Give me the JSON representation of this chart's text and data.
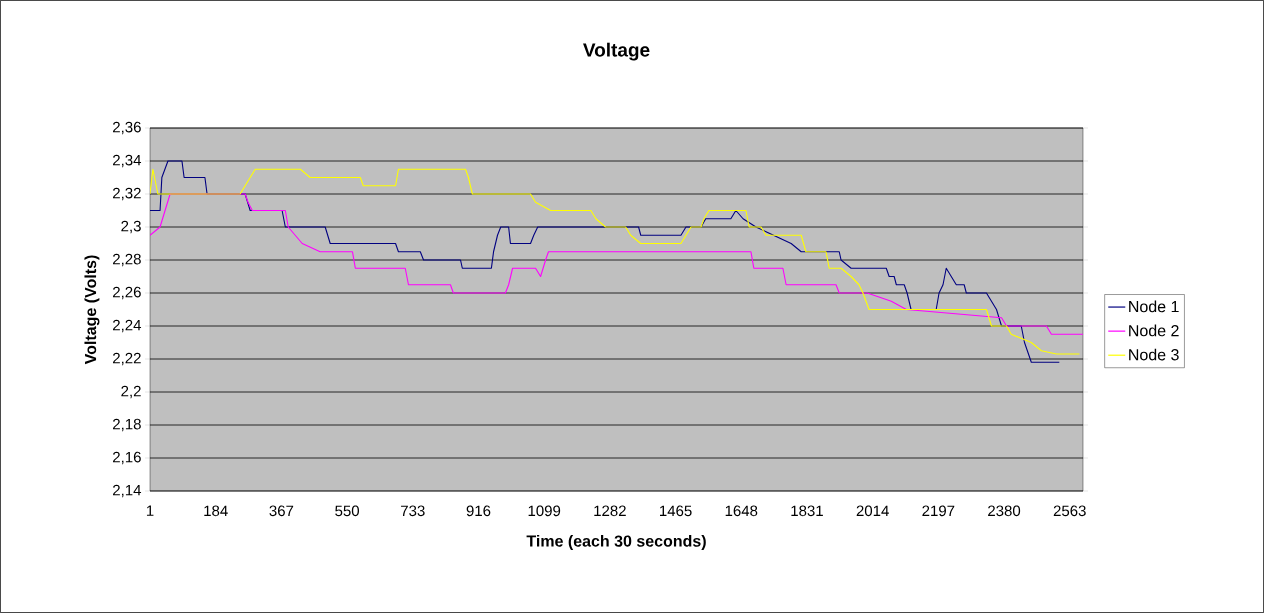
{
  "chart_data": {
    "type": "line",
    "title": "Voltage",
    "xlabel": "Time (each 30 seconds)",
    "ylabel": "Voltage (Volts)",
    "xlim": [
      1,
      2600
    ],
    "xticks": [
      1,
      184,
      367,
      550,
      733,
      916,
      1099,
      1282,
      1465,
      1648,
      1831,
      2014,
      2197,
      2380,
      2563
    ],
    "ylim": [
      2.14,
      2.36
    ],
    "yticks": [
      {
        "value": 2.14,
        "label": "2,14"
      },
      {
        "value": 2.16,
        "label": "2,16"
      },
      {
        "value": 2.18,
        "label": "2,18"
      },
      {
        "value": 2.2,
        "label": "2,2"
      },
      {
        "value": 2.22,
        "label": "2,22"
      },
      {
        "value": 2.24,
        "label": "2,24"
      },
      {
        "value": 2.26,
        "label": "2,26"
      },
      {
        "value": 2.28,
        "label": "2,28"
      },
      {
        "value": 2.3,
        "label": "2,3"
      },
      {
        "value": 2.32,
        "label": "2,32"
      },
      {
        "value": 2.34,
        "label": "2,34"
      },
      {
        "value": 2.36,
        "label": "2,36"
      }
    ],
    "grid": "y",
    "legend": "right",
    "series": [
      {
        "name": "Node 1",
        "color": "#000080",
        "x": [
          1,
          29,
          34,
          51,
          90,
          96,
          154,
          160,
          266,
          280,
          369,
          378,
          489,
          503,
          685,
          693,
          754,
          763,
          866,
          871,
          952,
          958,
          969,
          978,
          1000,
          1005,
          1061,
          1070,
          1081,
          1362,
          1368,
          1480,
          1494,
          1536,
          1549,
          1619,
          1633,
          1653,
          1689,
          1787,
          1815,
          1921,
          1926,
          1954,
          2052,
          2060,
          2074,
          2080,
          2102,
          2110,
          2121,
          2191,
          2199,
          2210,
          2219,
          2233,
          2247,
          2269,
          2275,
          2331,
          2345,
          2359,
          2373,
          2428,
          2437,
          2456,
          2534
        ],
        "values": [
          2.31,
          2.31,
          2.33,
          2.34,
          2.34,
          2.33,
          2.33,
          2.32,
          2.32,
          2.31,
          2.31,
          2.3,
          2.3,
          2.29,
          2.29,
          2.285,
          2.285,
          2.28,
          2.28,
          2.275,
          2.275,
          2.285,
          2.295,
          2.3,
          2.3,
          2.29,
          2.29,
          2.295,
          2.3,
          2.3,
          2.295,
          2.295,
          2.3,
          2.3,
          2.305,
          2.305,
          2.31,
          2.305,
          2.3,
          2.29,
          2.285,
          2.285,
          2.28,
          2.275,
          2.275,
          2.27,
          2.27,
          2.265,
          2.265,
          2.26,
          2.25,
          2.25,
          2.26,
          2.265,
          2.275,
          2.27,
          2.265,
          2.265,
          2.26,
          2.26,
          2.255,
          2.25,
          2.24,
          2.24,
          2.23,
          2.218,
          2.218
        ]
      },
      {
        "name": "Node 2",
        "color": "#ff00ff",
        "x": [
          1,
          29,
          43,
          57,
          266,
          274,
          286,
          378,
          386,
          425,
          475,
          565,
          573,
          712,
          721,
          838,
          846,
          991,
          1000,
          1011,
          1075,
          1089,
          1103,
          1111,
          1675,
          1683,
          1764,
          1773,
          1912,
          1921,
          1999,
          2066,
          2108,
          2373,
          2387,
          2498,
          2512,
          2600
        ],
        "values": [
          2.295,
          2.3,
          2.31,
          2.32,
          2.32,
          2.315,
          2.31,
          2.31,
          2.3,
          2.29,
          2.285,
          2.285,
          2.275,
          2.275,
          2.265,
          2.265,
          2.26,
          2.26,
          2.265,
          2.275,
          2.275,
          2.27,
          2.28,
          2.285,
          2.285,
          2.275,
          2.275,
          2.265,
          2.265,
          2.26,
          2.26,
          2.255,
          2.25,
          2.245,
          2.24,
          2.24,
          2.235,
          2.235
        ]
      },
      {
        "name": "Node 3",
        "color": "#ffff00",
        "x": [
          1,
          9,
          23,
          252,
          266,
          280,
          294,
          420,
          447,
          587,
          595,
          685,
          693,
          880,
          888,
          899,
          1061,
          1075,
          1117,
          1229,
          1243,
          1270,
          1326,
          1340,
          1368,
          1480,
          1494,
          1508,
          1536,
          1544,
          1558,
          1661,
          1670,
          1703,
          1717,
          1815,
          1828,
          1884,
          1893,
          1926,
          1954,
          1976,
          1987,
          2004,
          2331,
          2345,
          2387,
          2400,
          2456,
          2484,
          2526,
          2590
        ],
        "values": [
          2.32,
          2.335,
          2.32,
          2.32,
          2.325,
          2.33,
          2.335,
          2.335,
          2.33,
          2.33,
          2.325,
          2.325,
          2.335,
          2.335,
          2.33,
          2.32,
          2.32,
          2.315,
          2.31,
          2.31,
          2.305,
          2.3,
          2.3,
          2.295,
          2.29,
          2.29,
          2.295,
          2.3,
          2.3,
          2.305,
          2.31,
          2.31,
          2.3,
          2.3,
          2.295,
          2.295,
          2.285,
          2.285,
          2.275,
          2.275,
          2.27,
          2.265,
          2.26,
          2.25,
          2.25,
          2.24,
          2.24,
          2.235,
          2.23,
          2.225,
          2.223,
          2.223
        ]
      }
    ]
  }
}
